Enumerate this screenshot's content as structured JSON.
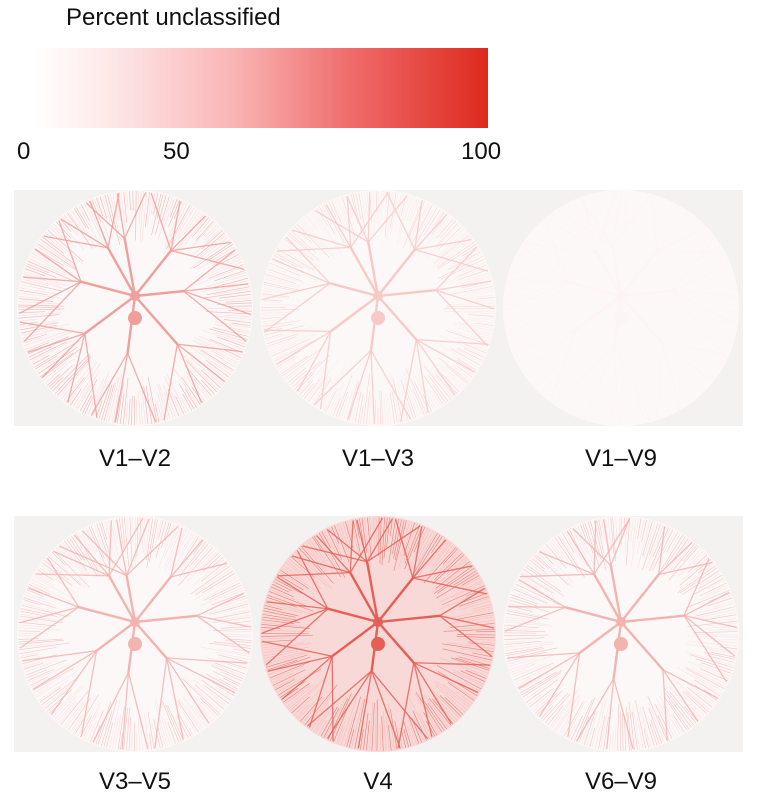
{
  "legend": {
    "title": "Percent unclassified",
    "ticks": [
      "0",
      "50",
      "100"
    ]
  },
  "trees": [
    {
      "label": "V1–V2",
      "percent": 45
    },
    {
      "label": "V1–V3",
      "percent": 25
    },
    {
      "label": "V1–V9",
      "percent": 5
    },
    {
      "label": "V3–V5",
      "percent": 35
    },
    {
      "label": "V4",
      "percent": 75
    },
    {
      "label": "V6–V9",
      "percent": 35
    }
  ],
  "colors": {
    "scale_low": "#ffffff",
    "scale_high": "#dd2a1e",
    "panel_background": "#f4f1f1"
  }
}
